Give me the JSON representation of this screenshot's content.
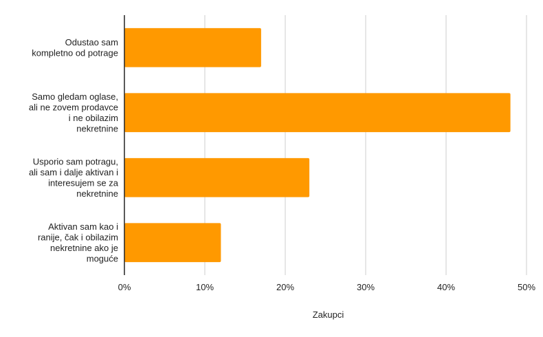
{
  "chart_data": {
    "type": "bar",
    "orientation": "horizontal",
    "categories": [
      [
        "Odustao sam",
        "kompletno od potrage"
      ],
      [
        "Samo gledam oglase,",
        "ali ne zovem prodavce",
        "i ne obilazim",
        "nekretnine"
      ],
      [
        "Usporio sam potragu,",
        "ali sam i dalje aktivan i",
        "interesujem se za",
        "nekretnine"
      ],
      [
        "Aktivan sam kao i",
        "ranije, čak i obilazim",
        "nekretnine ako je",
        "moguće"
      ]
    ],
    "values": [
      0.17,
      0.48,
      0.23,
      0.12
    ],
    "xlabel": "Zakupci",
    "ylabel": "",
    "xlim": [
      0,
      0.5
    ],
    "xticks": [
      "0%",
      "10%",
      "20%",
      "30%",
      "40%",
      "50%"
    ],
    "grid": "vertical",
    "legend": "none",
    "colors": {
      "bar": "#FF9900",
      "grid": "#CCCCCC",
      "axis": "#222222"
    }
  }
}
